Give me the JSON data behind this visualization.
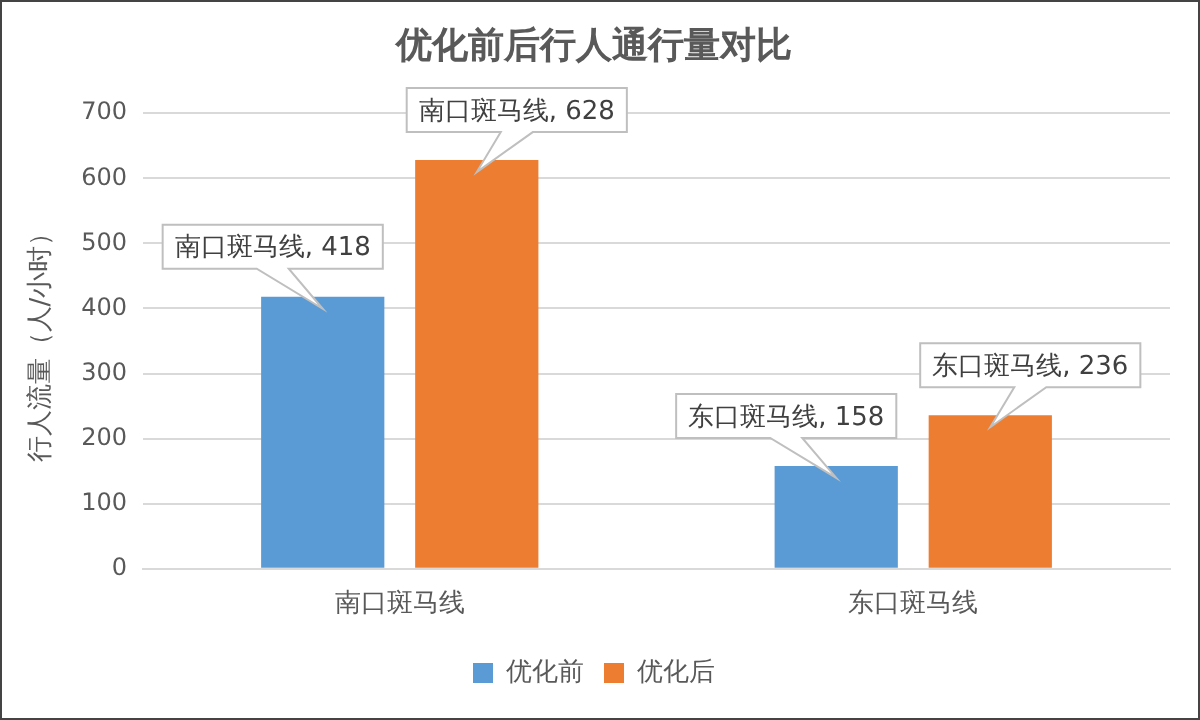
{
  "chart_data": {
    "type": "bar",
    "title": "优化前后行人通行量对比",
    "ylabel": "行人流量（人/小时）",
    "categories": [
      "南口斑马线",
      "东口斑马线"
    ],
    "series": [
      {
        "name": "优化前",
        "color": "#5b9bd5",
        "values": [
          418,
          158
        ],
        "value_labels": [
          "南口斑马线, 418",
          "东口斑马线, 158"
        ]
      },
      {
        "name": "优化后",
        "color": "#ed7d31",
        "values": [
          628,
          236
        ],
        "value_labels": [
          "南口斑马线, 628",
          "东口斑马线, 236"
        ]
      }
    ],
    "ylim": [
      0,
      700
    ],
    "yticks": [
      0,
      100,
      200,
      300,
      400,
      500,
      600,
      700
    ],
    "grid": "y",
    "legend": "bottom"
  }
}
